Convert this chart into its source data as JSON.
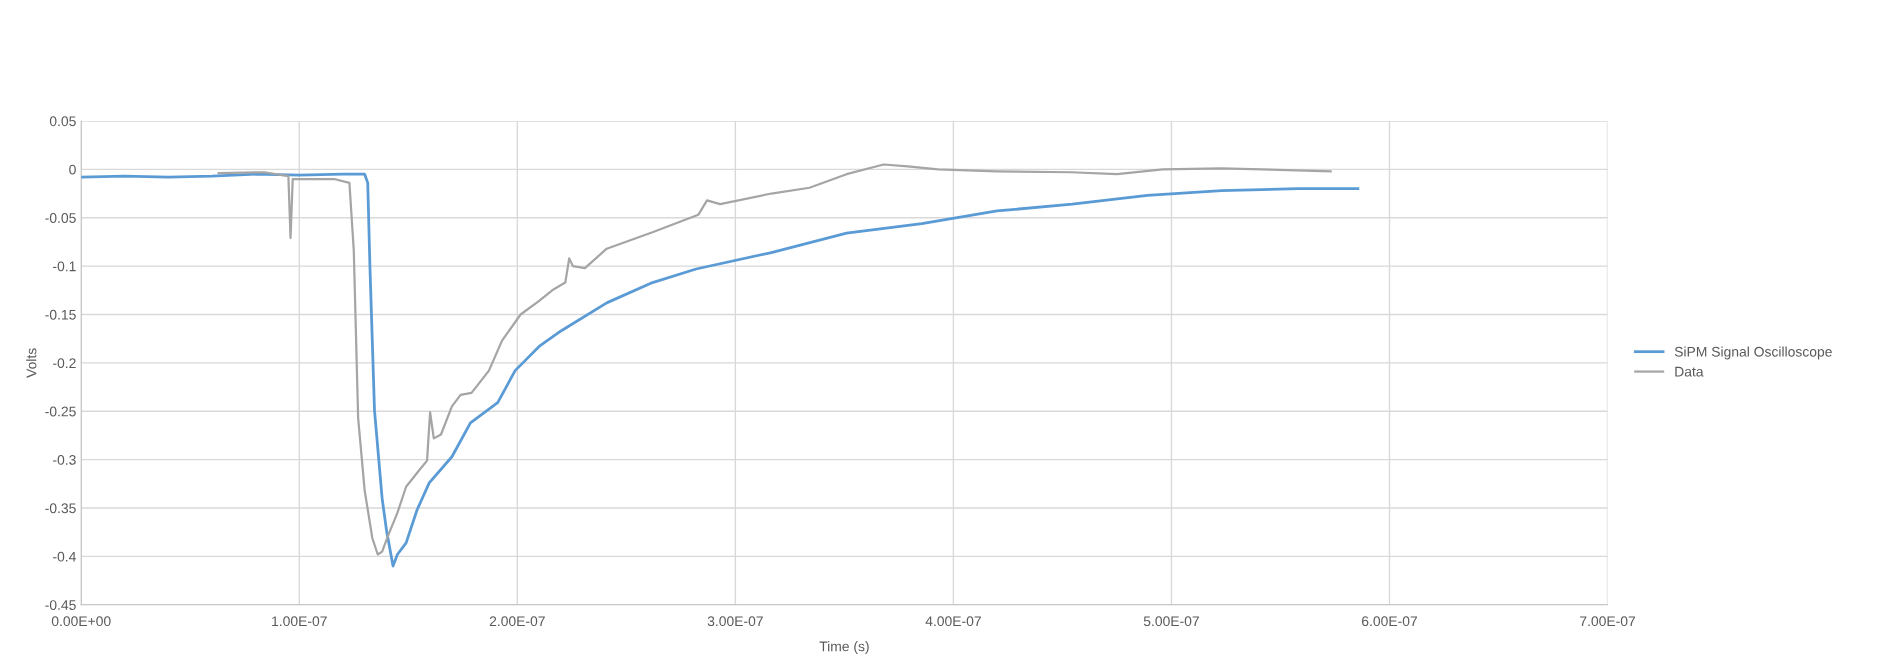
{
  "chart_data": {
    "type": "line",
    "xlabel": "Time (s)",
    "ylabel": "Volts",
    "xlim": [
      0,
      7e-07
    ],
    "xticks": [
      {
        "value": 0,
        "label": "0.00E+00"
      },
      {
        "value": 1e-07,
        "label": "1.00E-07"
      },
      {
        "value": 2e-07,
        "label": "2.00E-07"
      },
      {
        "value": 3e-07,
        "label": "3.00E-07"
      },
      {
        "value": 4e-07,
        "label": "4.00E-07"
      },
      {
        "value": 5e-07,
        "label": "5.00E-07"
      },
      {
        "value": 6e-07,
        "label": "6.00E-07"
      },
      {
        "value": 7e-07,
        "label": "7.00E-07"
      }
    ],
    "ylim": [
      -0.45,
      0.05
    ],
    "yticks": [
      0.05,
      0,
      -0.05,
      -0.1,
      -0.15,
      -0.2,
      -0.25,
      -0.3,
      -0.35,
      -0.4,
      -0.45
    ],
    "grid": true,
    "legend": "right",
    "marker": "none",
    "line_style": "solid",
    "series": [
      {
        "name": "SiPM Signal Oscilloscope",
        "color": "#5b9bd5",
        "x": [
          0,
          2e-08,
          4e-08,
          6e-08,
          8e-08,
          1e-07,
          1.2e-07,
          1.3e-07,
          1.314e-07,
          1.324e-07,
          1.345e-07,
          1.38e-07,
          1.4e-07,
          1.43e-07,
          1.45e-07,
          1.49e-07,
          1.54e-07,
          1.596e-07,
          1.7e-07,
          1.785e-07,
          1.91e-07,
          1.99e-07,
          2.1e-07,
          2.2e-07,
          2.41e-07,
          2.62e-07,
          2.82e-07,
          3.165e-07,
          3.51e-07,
          3.855e-07,
          4.2e-07,
          4.545e-07,
          4.89e-07,
          5.23e-07,
          5.58e-07,
          5.855e-07
        ],
        "values": [
          -0.008,
          -0.007,
          -0.008,
          -0.007,
          -0.005,
          -0.006,
          -0.005,
          -0.005,
          -0.014,
          -0.1,
          -0.249,
          -0.34,
          -0.373,
          -0.41,
          -0.398,
          -0.386,
          -0.352,
          -0.324,
          -0.297,
          -0.262,
          -0.241,
          -0.208,
          -0.183,
          -0.167,
          -0.138,
          -0.117,
          -0.103,
          -0.086,
          -0.066,
          -0.056,
          -0.043,
          -0.036,
          -0.027,
          -0.022,
          -0.02,
          -0.02
        ]
      },
      {
        "name": "Data",
        "color": "#a5a5a5",
        "x": [
          6.3e-08,
          8.4e-08,
          9.5e-08,
          9.6e-08,
          9.7e-08,
          1.16e-07,
          1.23e-07,
          1.25e-07,
          1.27e-07,
          1.3e-07,
          1.335e-07,
          1.36e-07,
          1.38e-07,
          1.41e-07,
          1.45e-07,
          1.49e-07,
          1.55e-07,
          1.586e-07,
          1.6e-07,
          1.617e-07,
          1.65e-07,
          1.7e-07,
          1.74e-07,
          1.79e-07,
          1.87e-07,
          1.93e-07,
          2.015e-07,
          2.1e-07,
          2.16e-07,
          2.22e-07,
          2.238e-07,
          2.255e-07,
          2.31e-07,
          2.41e-07,
          2.62e-07,
          2.83e-07,
          2.87e-07,
          2.93e-07,
          3.165e-07,
          3.34e-07,
          3.51e-07,
          3.68e-07,
          3.79e-07,
          3.93e-07,
          4.2e-07,
          4.54e-07,
          4.75e-07,
          4.96e-07,
          5.23e-07,
          5.73e-07
        ],
        "values": [
          -0.004,
          -0.003,
          -0.007,
          -0.071,
          -0.01,
          -0.01,
          -0.014,
          -0.084,
          -0.257,
          -0.332,
          -0.381,
          -0.398,
          -0.395,
          -0.377,
          -0.355,
          -0.328,
          -0.311,
          -0.301,
          -0.251,
          -0.278,
          -0.274,
          -0.245,
          -0.233,
          -0.231,
          -0.208,
          -0.177,
          -0.15,
          -0.136,
          -0.125,
          -0.117,
          -0.092,
          -0.1,
          -0.102,
          -0.082,
          -0.065,
          -0.047,
          -0.032,
          -0.036,
          -0.025,
          -0.019,
          -0.005,
          0.005,
          0.003,
          0,
          -0.002,
          -0.003,
          -0.005,
          0,
          0.001,
          -0.002
        ]
      }
    ]
  }
}
